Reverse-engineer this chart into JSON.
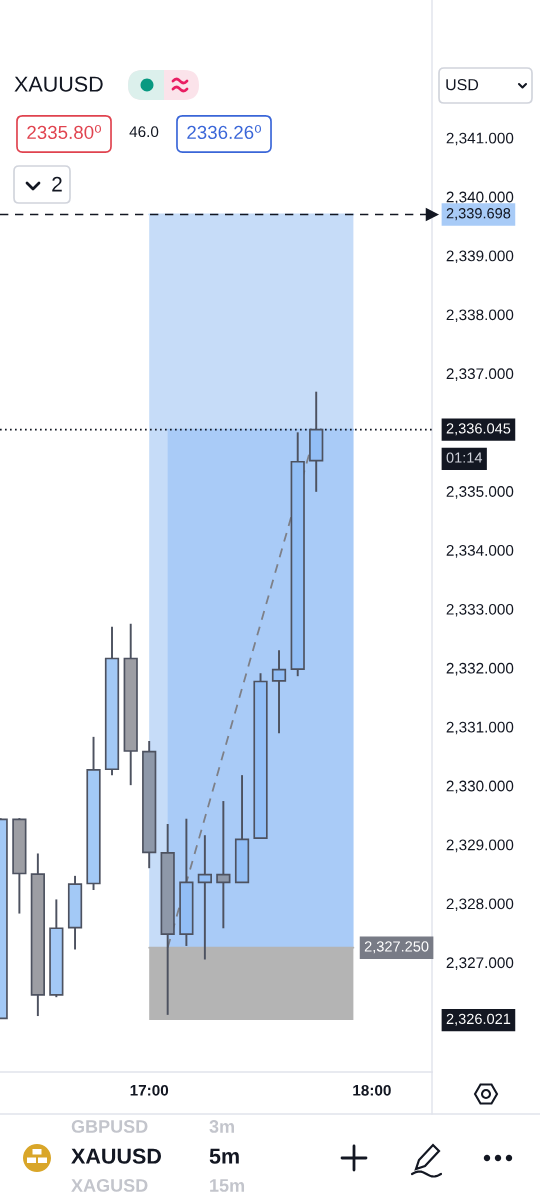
{
  "chart_data": {
    "type": "candlestick",
    "title": "XAUUSD",
    "x": [
      16.333,
      16.417,
      16.5,
      16.583,
      16.667,
      16.75,
      16.833,
      16.917,
      17,
      17.083,
      17.167,
      17.25,
      17.333,
      17.417,
      17.5,
      17.583,
      17.667,
      17.75
    ],
    "ohlc": [
      [
        2326.05,
        2329.45,
        2326.05,
        2329.43
      ],
      [
        2329.43,
        2329.45,
        2327.83,
        2328.51
      ],
      [
        2328.5,
        2328.85,
        2326.09,
        2326.45
      ],
      [
        2326.45,
        2328.07,
        2326.41,
        2327.58
      ],
      [
        2327.59,
        2328.47,
        2327.22,
        2328.33
      ],
      [
        2328.34,
        2330.83,
        2328.23,
        2330.27
      ],
      [
        2330.28,
        2332.7,
        2330.18,
        2332.16
      ],
      [
        2332.16,
        2332.75,
        2330.01,
        2330.59
      ],
      [
        2330.58,
        2330.76,
        2328.6,
        2328.87
      ],
      [
        2328.86,
        2329.35,
        2326.11,
        2327.48
      ],
      [
        2327.48,
        2329.44,
        2327.28,
        2328.36
      ],
      [
        2328.36,
        2329.16,
        2327.05,
        2328.49
      ],
      [
        2328.49,
        2329.74,
        2327.58,
        2328.36
      ],
      [
        2328.36,
        2330.18,
        2328.36,
        2329.09
      ],
      [
        2329.11,
        2331.91,
        2329.11,
        2331.77
      ],
      [
        2331.78,
        2332.3,
        2330.89,
        2331.97
      ],
      [
        2331.98,
        2336.0,
        2331.86,
        2335.5
      ],
      [
        2335.52,
        2336.69,
        2334.99,
        2336.045
      ]
    ],
    "colors": [
      "#a3c9f6",
      "#9d9ea4",
      "#9d9ea4",
      "#a3c9f6",
      "#a3c9f6",
      "#a3c9f6",
      "#a3c9f6",
      "#9d9ea4",
      "#8e98a9",
      "#8e98a9",
      "#92bef6",
      "#92bef6",
      "#8e98a9",
      "#92bef6",
      "#92bef6",
      "#92bef6",
      "#92bef6",
      "#92bef6"
    ],
    "series": [
      {
        "type": "line",
        "color": "#c6dcf8",
        "x": [
          17,
          17.917
        ],
        "values": [
          2339.698,
          2339.698
        ],
        "lower": [
          2327.25,
          2327.25
        ],
        "upper": [
          2339.698,
          2339.698
        ]
      },
      {
        "type": "line",
        "color": "#b4b4b4",
        "x": [
          17,
          17.917
        ],
        "values": [
          2327.25,
          2327.25
        ],
        "lower": [
          2326.021,
          2326.021
        ],
        "upper": [
          2327.25,
          2327.25
        ]
      },
      {
        "type": "line",
        "color": "#a9cbf7",
        "x": [
          17.083,
          17.917
        ],
        "values": [
          2336.045,
          2336.045
        ],
        "lower": [
          2327.25,
          2327.25
        ],
        "upper": [
          2336.045,
          2336.045
        ]
      },
      {
        "type": "line",
        "color": "#7e8088",
        "x": [
          17.083,
          17.75
        ],
        "values": [
          2327.25,
          2336.045
        ],
        "line_style": "dashed"
      }
    ],
    "ref_lines": [
      {
        "axis": "y",
        "value": 2339.698,
        "label": "2,339.698",
        "color": "#131722",
        "line_style": "dashed"
      },
      {
        "axis": "y",
        "value": 2336.045,
        "label": "2,336.045",
        "color": "#131722",
        "line_style": "dotted"
      }
    ],
    "annotations": [
      "2335.80⁰",
      "46.0",
      "2336.26⁰",
      "2",
      "USD",
      "01:14",
      "2,327.250",
      "2,326.021",
      "XAUUSD",
      "5m",
      "GBPUSD",
      "3m",
      "XAGUSD",
      "15m"
    ],
    "xlim": [
      16.33,
      18.27
    ],
    "ylim": [
      2325.14,
      2343.34
    ],
    "xticks": [
      {
        "value": 17,
        "label": "17:00"
      },
      {
        "value": 18,
        "label": "18:00"
      }
    ],
    "yticks": [
      {
        "value": 2327,
        "label": "2,327.000"
      },
      {
        "value": 2328,
        "label": "2,328.000"
      },
      {
        "value": 2329,
        "label": "2,329.000"
      },
      {
        "value": 2330,
        "label": "2,330.000"
      },
      {
        "value": 2331,
        "label": "2,331.000"
      },
      {
        "value": 2332,
        "label": "2,332.000"
      },
      {
        "value": 2333,
        "label": "2,333.000"
      },
      {
        "value": 2334,
        "label": "2,334.000"
      },
      {
        "value": 2335,
        "label": "2,335.000"
      },
      {
        "value": 2337,
        "label": "2,337.000"
      },
      {
        "value": 2338,
        "label": "2,338.000"
      },
      {
        "value": 2339,
        "label": "2,339.000"
      },
      {
        "value": 2340,
        "label": "2,340.000"
      },
      {
        "value": 2341,
        "label": "2,341.000"
      }
    ]
  }
}
